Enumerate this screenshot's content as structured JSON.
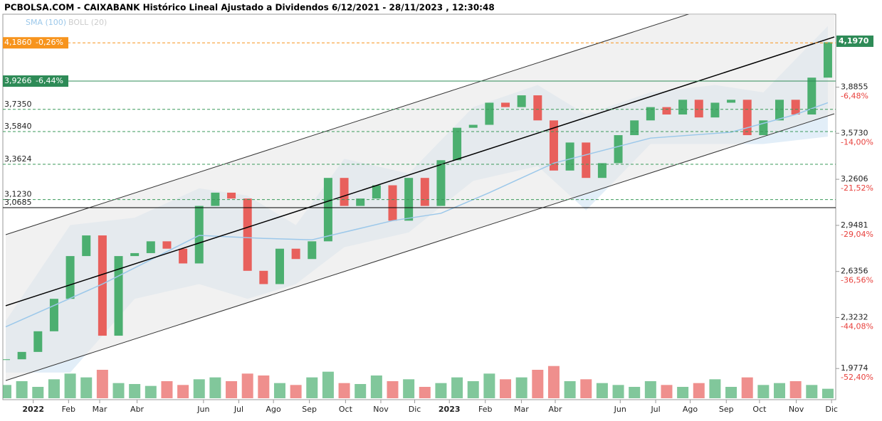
{
  "chart_data": {
    "type": "candlestick",
    "title": "PCBOLSA.COM - CAIXABANK Histórico Lineal Ajustado a Dividendos 6/12/2021 - 28/11/2023 , 12:30:48",
    "legend": [
      "SMA (100)",
      "BOLL (20)"
    ],
    "xlim": [
      0,
      51.4
    ],
    "ylim": [
      1.8,
      4.38
    ],
    "xticks": [
      {
        "value": 1.71,
        "label": "2022"
      },
      {
        "value": 3.9,
        "label": "Feb"
      },
      {
        "value": 5.83,
        "label": "Mar"
      },
      {
        "value": 8.15,
        "label": "Abr"
      },
      {
        "value": 12.27,
        "label": "Jun"
      },
      {
        "value": 14.46,
        "label": "Jul"
      },
      {
        "value": 16.61,
        "label": "Ago"
      },
      {
        "value": 18.84,
        "label": "Sep"
      },
      {
        "value": 21.08,
        "label": "Oct"
      },
      {
        "value": 23.27,
        "label": "Nov"
      },
      {
        "value": 25.37,
        "label": "Dic"
      },
      {
        "value": 27.52,
        "label": "2023"
      },
      {
        "value": 29.75,
        "label": "Feb"
      },
      {
        "value": 31.99,
        "label": "Mar"
      },
      {
        "value": 34.09,
        "label": "Abr"
      },
      {
        "value": 38.12,
        "label": "Jun"
      },
      {
        "value": 40.32,
        "label": "Jul"
      },
      {
        "value": 42.46,
        "label": "Ago"
      },
      {
        "value": 44.7,
        "label": "Sep"
      },
      {
        "value": 46.76,
        "label": "Oct"
      },
      {
        "value": 49.04,
        "label": "Nov"
      },
      {
        "value": 51.23,
        "label": "Dic"
      }
    ],
    "yticks": [
      {
        "value": 3.8855,
        "label": "3,8855"
      },
      {
        "value": 3.573,
        "label": "3,5730"
      },
      {
        "value": 3.2606,
        "label": "3,2606"
      },
      {
        "value": 2.9481,
        "label": "2,9481"
      },
      {
        "value": 2.6356,
        "label": "2,6356"
      },
      {
        "value": 2.3232,
        "label": "2,3232"
      },
      {
        "value": 1.9774,
        "label": "1,9774"
      }
    ],
    "ytick_pct": [
      {
        "value": -6.48,
        "label": "-6,48%"
      },
      {
        "value": -14.0,
        "label": "-14,00%"
      },
      {
        "value": -21.52,
        "label": "-21,52%"
      },
      {
        "value": -29.04,
        "label": "-29,04%"
      },
      {
        "value": -36.56,
        "label": "-36,56%"
      },
      {
        "value": -44.08,
        "label": "-44,08%"
      },
      {
        "value": -52.4,
        "label": "-52,40%"
      }
    ],
    "last_price": {
      "value": 4.197,
      "label": "4,1970"
    },
    "levels": [
      {
        "value": 4.186,
        "label": "4,1860",
        "pct": {
          "value": -0.26,
          "label": "-0,26%"
        },
        "color": "#f7941d",
        "style": "dashed"
      },
      {
        "value": 3.9266,
        "label": "3,9266",
        "pct": {
          "value": -6.44,
          "label": "-6,44%"
        },
        "color": "#2e8b57",
        "style": "solid"
      },
      {
        "value": 3.735,
        "label": "3,7350",
        "color": "#3a9a5a",
        "style": "dashed"
      },
      {
        "value": 3.584,
        "label": "3,5840",
        "color": "#3a9a5a",
        "style": "dashed"
      },
      {
        "value": 3.3624,
        "label": "3,3624",
        "color": "#3a9a5a",
        "style": "dashed"
      },
      {
        "value": 3.123,
        "label": "3,1230",
        "color": "#3a9a5a",
        "style": "dashed"
      },
      {
        "value": 3.0685,
        "label": "3,0685",
        "color": "#000000",
        "style": "solid"
      }
    ],
    "channel": [
      {
        "start": 2.885,
        "end": 4.7
      },
      {
        "start": 2.403,
        "end": 4.226
      },
      {
        "start": 1.896,
        "end": 3.705
      }
    ],
    "series": [
      {
        "name": "Close",
        "up_color": "#4caf70",
        "down_color": "#e8605c",
        "values": [
          2.04,
          2.09,
          2.23,
          2.45,
          2.74,
          2.88,
          2.2,
          2.74,
          2.76,
          2.84,
          2.79,
          2.69,
          3.08,
          3.17,
          3.13,
          2.64,
          2.55,
          2.79,
          2.72,
          2.84,
          3.27,
          3.08,
          3.13,
          3.22,
          2.98,
          3.27,
          3.08,
          3.39,
          3.61,
          3.63,
          3.78,
          3.75,
          3.83,
          3.66,
          3.32,
          3.51,
          3.27,
          3.37,
          3.56,
          3.66,
          3.75,
          3.7,
          3.8,
          3.68,
          3.78,
          3.8,
          3.56,
          3.66,
          3.8,
          3.7,
          3.95,
          4.19
        ]
      },
      {
        "name": "SMA (100)",
        "color": "#9cc8ea",
        "x": [
          0,
          6,
          12,
          16,
          19,
          24,
          27,
          30,
          34,
          40,
          45,
          49,
          51
        ],
        "values": [
          2.26,
          2.55,
          2.88,
          2.86,
          2.85,
          2.98,
          3.03,
          3.17,
          3.37,
          3.54,
          3.58,
          3.7,
          3.78
        ]
      },
      {
        "name": "BOLL (20)",
        "color": "#cfe3f3",
        "x": [
          0,
          4,
          8,
          12,
          15,
          18,
          21,
          25,
          29,
          33,
          36,
          40,
          44,
          47,
          51
        ],
        "upper": [
          2.3,
          2.95,
          3.0,
          3.2,
          3.15,
          2.95,
          3.4,
          3.3,
          3.75,
          3.9,
          3.7,
          3.85,
          3.9,
          3.85,
          4.3
        ],
        "lower": [
          1.95,
          1.95,
          2.45,
          2.55,
          2.45,
          2.55,
          2.8,
          2.9,
          3.25,
          3.35,
          3.05,
          3.5,
          3.5,
          3.5,
          3.55
        ]
      },
      {
        "name": "Volume",
        "ylim": [
          0,
          60
        ],
        "values": [
          14,
          18,
          12,
          20,
          26,
          22,
          30,
          16,
          15,
          13,
          18,
          14,
          20,
          22,
          18,
          26,
          24,
          16,
          14,
          22,
          28,
          16,
          15,
          24,
          18,
          20,
          12,
          16,
          22,
          18,
          26,
          20,
          22,
          30,
          34,
          18,
          20,
          16,
          14,
          12,
          18,
          14,
          12,
          16,
          20,
          12,
          22,
          14,
          16,
          18,
          14,
          10
        ]
      }
    ]
  }
}
